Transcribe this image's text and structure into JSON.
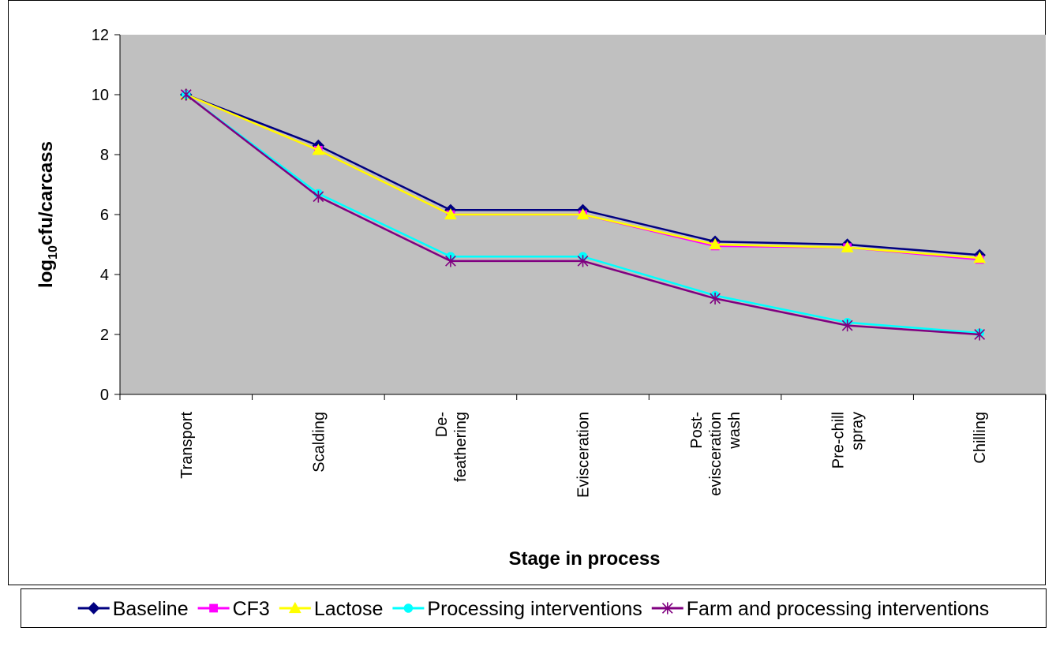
{
  "chart_data": {
    "type": "line",
    "categories": [
      "Transport",
      "Scalding",
      "De- feathering",
      "Evisceration",
      "Post- evisceration wash",
      "Pre-chill spray",
      "Chilling"
    ],
    "category_lines": [
      [
        "Transport"
      ],
      [
        "Scalding"
      ],
      [
        "De-",
        "feathering"
      ],
      [
        "Evisceration"
      ],
      [
        "Post-",
        "evisceration",
        "wash"
      ],
      [
        "Pre-chill",
        "spray"
      ],
      [
        "Chilling"
      ]
    ],
    "ylim": [
      0,
      12
    ],
    "yticks": [
      "0",
      "2",
      "4",
      "6",
      "8",
      "10",
      "12"
    ],
    "ylabel_main": "log",
    "ylabel_sub": "10",
    "ylabel_rest": "cfu/carcass",
    "xlabel": "Stage in process",
    "grid": false,
    "legend_position": "bottom",
    "series": [
      {
        "name": "Baseline",
        "color": "#000080",
        "marker": "diamond",
        "values": [
          10.0,
          8.3,
          6.15,
          6.15,
          5.1,
          5.0,
          4.65
        ]
      },
      {
        "name": "CF3",
        "color": "#FF00FF",
        "marker": "square",
        "values": [
          10.0,
          8.15,
          6.0,
          6.0,
          4.95,
          4.9,
          4.5
        ]
      },
      {
        "name": "Lactose",
        "color": "#FFFF00",
        "marker": "triangle",
        "values": [
          10.0,
          8.15,
          6.0,
          6.0,
          5.0,
          4.9,
          4.55
        ]
      },
      {
        "name": "Processing interventions",
        "color": "#00FFFF",
        "marker": "circle",
        "values": [
          10.0,
          6.7,
          4.6,
          4.6,
          3.3,
          2.4,
          2.05
        ]
      },
      {
        "name": "Farm and processing interventions",
        "color": "#800080",
        "marker": "star",
        "values": [
          10.0,
          6.6,
          4.45,
          4.45,
          3.2,
          2.3,
          2.0
        ]
      }
    ]
  }
}
